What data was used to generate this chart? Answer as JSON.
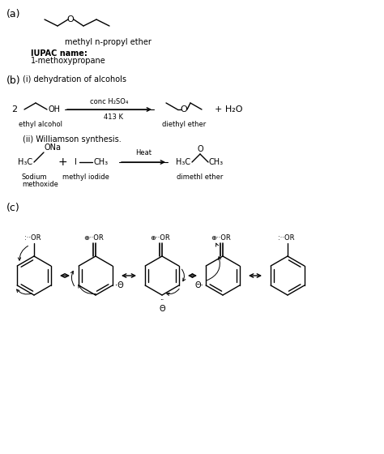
{
  "bg_color": "#ffffff",
  "text_color": "#000000",
  "title_a": "(a)",
  "title_b": "(b)",
  "title_c": "(c)",
  "label_methyl_npropyl": "methyl n-propyl ether",
  "label_iupac_line1": "IUPAC name:",
  "label_iupac_line2": "1-methoxypropane",
  "label_b_i": "(i) dehydration of alcohols",
  "label_2": "2",
  "label_ethyl_alcohol": "ethyl alcohol",
  "label_conc_h2so4": "conc H₂SO₄",
  "label_413k": "413 K",
  "label_diethyl_ether": "diethyl ether",
  "label_plus_h2o": "+ H₂O",
  "label_b_ii": "(ii) Williamson synthesis.",
  "label_sodium_methoxide_l1": "Sodium",
  "label_sodium_methoxide_l2": "methoxide",
  "label_methyl_iodide": "methyl iodide",
  "label_heat": "Heat",
  "label_dimethl_ether": "dimethl ether",
  "font_size_section": 9,
  "font_size_text": 8,
  "font_size_small": 7
}
